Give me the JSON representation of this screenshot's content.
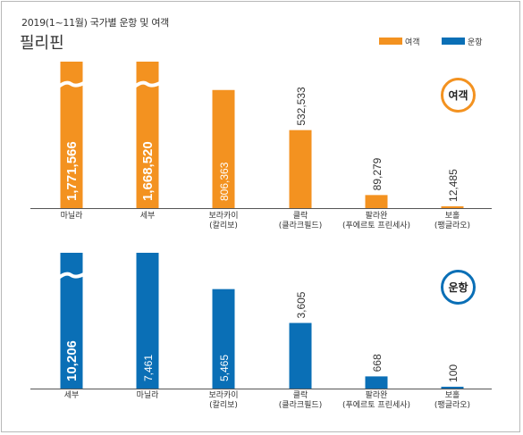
{
  "header": {
    "subtitle": "2019(1~11월) 국가별 운항 및 여객",
    "country": "필리핀"
  },
  "legend": [
    {
      "label": "여객",
      "color": "#F39220"
    },
    {
      "label": "운항",
      "color": "#0A6FB6"
    }
  ],
  "badges": {
    "passengers": "여객",
    "flights": "운항"
  },
  "colors": {
    "passengers": "#F39220",
    "flights": "#0A6FB6"
  },
  "chart_data": [
    {
      "type": "bar",
      "series": [
        {
          "name": "여객",
          "values": [
            1771566,
            1668520,
            806363,
            532533,
            89279,
            12485
          ]
        }
      ],
      "categories": [
        [
          "마닐라"
        ],
        [
          "세부"
        ],
        [
          "보라카이",
          "(칼리보)"
        ],
        [
          "클락",
          "(클라크필드)"
        ],
        [
          "팔라완",
          "(푸에르토 프린세사)"
        ],
        [
          "보홀",
          "(팽글라오)"
        ]
      ],
      "data_labels": [
        "1,771,566",
        "1,668,520",
        "806,363",
        "532,533",
        "89,279",
        "12,485"
      ],
      "axis_break": true,
      "visual_max": 1000000
    },
    {
      "type": "bar",
      "series": [
        {
          "name": "운항",
          "values": [
            10206,
            7461,
            5465,
            3605,
            668,
            100
          ]
        }
      ],
      "categories": [
        [
          "세부"
        ],
        [
          "마닐라"
        ],
        [
          "보라카이",
          "(칼리보)"
        ],
        [
          "클락",
          "(클라크필드)"
        ],
        [
          "팔라완",
          "(푸에르토 프린세사)"
        ],
        [
          "보홀",
          "(팽글라오)"
        ]
      ],
      "data_labels": [
        "10,206",
        "7,461",
        "5,465",
        "3,605",
        "668",
        "100"
      ],
      "axis_break": true,
      "visual_max": 7461
    }
  ]
}
